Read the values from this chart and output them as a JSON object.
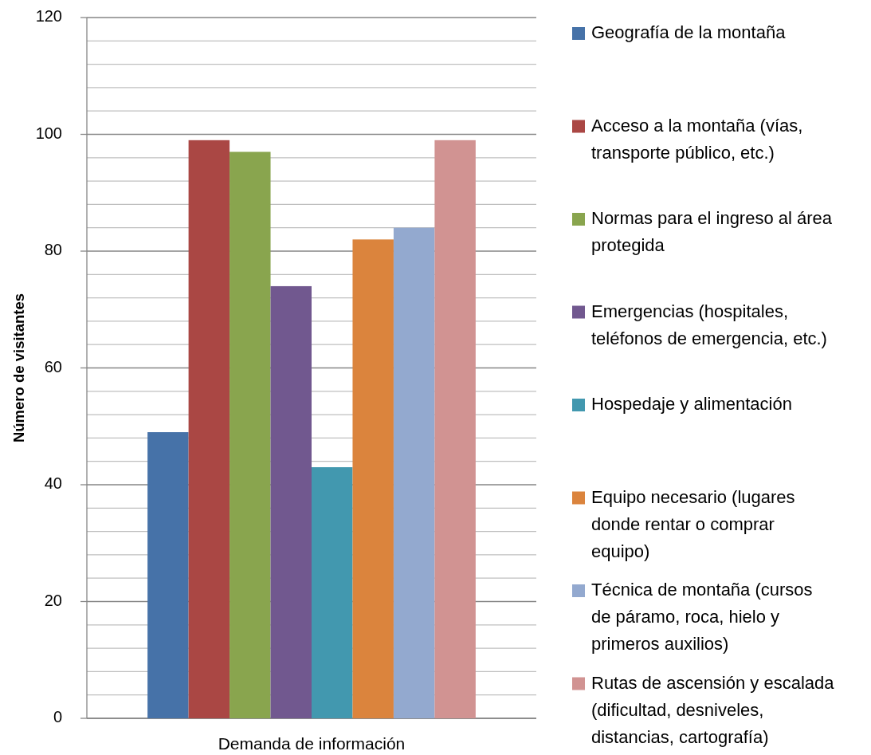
{
  "chart_data": {
    "type": "bar",
    "ylabel": "Número de visitantes",
    "categories": [
      "Demanda de información"
    ],
    "series": [
      {
        "name": "Geografía de la montaña",
        "color": "#4672a8",
        "values": [
          49
        ]
      },
      {
        "name": "Acceso a la montaña (vías, transporte público, etc.)",
        "color": "#aa4744",
        "values": [
          99
        ]
      },
      {
        "name": "Normas para el ingreso al área protegida",
        "color": "#89a54e",
        "values": [
          97
        ]
      },
      {
        "name": "Emergencias (hospitales, teléfonos de emergencia, etc.)",
        "color": "#71588f",
        "values": [
          74
        ]
      },
      {
        "name": "Hospedaje y alimentación",
        "color": "#4298af",
        "values": [
          43
        ]
      },
      {
        "name": "Equipo necesario (lugares donde rentar o comprar equipo)",
        "color": "#db843d",
        "values": [
          82
        ]
      },
      {
        "name": "Técnica de montaña (cursos de páramo, roca, hielo y primeros auxilios)",
        "color": "#93a9cf",
        "values": [
          84
        ]
      },
      {
        "name": "Rutas de ascensión y escalada (dificultad, desniveles, distancias, cartografía)",
        "color": "#d19392",
        "values": [
          99
        ]
      }
    ],
    "ylim": [
      0,
      120
    ],
    "yticks": [
      0,
      {
        "value": 4,
        "label": null
      },
      {
        "value": 8,
        "label": null
      },
      {
        "value": 12,
        "label": null
      },
      {
        "value": 16,
        "label": null
      },
      20,
      {
        "value": 24,
        "label": null
      },
      {
        "value": 28,
        "label": null
      },
      {
        "value": 32,
        "label": null
      },
      {
        "value": 36,
        "label": null
      },
      40,
      {
        "value": 44,
        "label": null
      },
      {
        "value": 48,
        "label": null
      },
      {
        "value": 52,
        "label": null
      },
      {
        "value": 56,
        "label": null
      },
      60,
      {
        "value": 64,
        "label": null
      },
      {
        "value": 68,
        "label": null
      },
      {
        "value": 72,
        "label": null
      },
      {
        "value": 76,
        "label": null
      },
      80,
      {
        "value": 84,
        "label": null
      },
      {
        "value": 88,
        "label": null
      },
      {
        "value": 92,
        "label": null
      },
      {
        "value": 96,
        "label": null
      },
      100,
      {
        "value": 104,
        "label": null
      },
      {
        "value": 108,
        "label": null
      },
      {
        "value": 112,
        "label": null
      },
      {
        "value": 116,
        "label": null
      },
      120
    ],
    "grid": "y",
    "legend": "right"
  }
}
